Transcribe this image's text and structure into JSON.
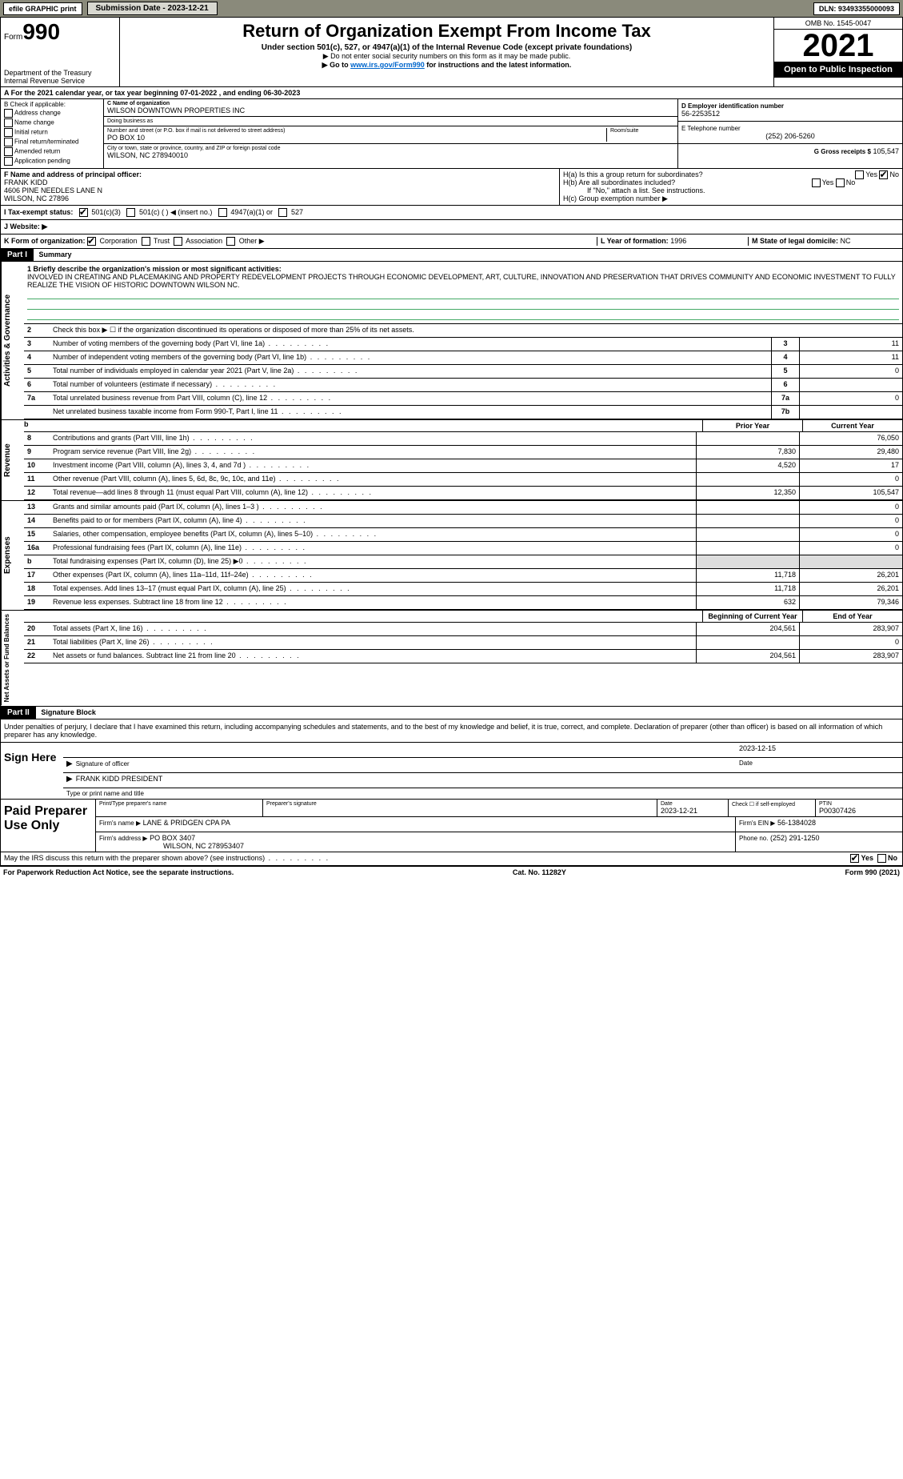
{
  "topbar": {
    "efile": "efile GRAPHIC print",
    "submission_label": "Submission Date - 2023-12-21",
    "dln": "DLN: 93493355000093"
  },
  "header": {
    "form_small": "Form",
    "form_big": "990",
    "dept": "Department of the Treasury",
    "irs": "Internal Revenue Service",
    "title": "Return of Organization Exempt From Income Tax",
    "sub1": "Under section 501(c), 527, or 4947(a)(1) of the Internal Revenue Code (except private foundations)",
    "sub2": "▶ Do not enter social security numbers on this form as it may be made public.",
    "sub3_pre": "▶ Go to ",
    "sub3_link": "www.irs.gov/Form990",
    "sub3_post": " for instructions and the latest information.",
    "omb": "OMB No. 1545-0047",
    "year": "2021",
    "open": "Open to Public Inspection"
  },
  "row_a": "A For the 2021 calendar year, or tax year beginning 07-01-2022    , and ending 06-30-2023",
  "check_b": {
    "title": "B Check if applicable:",
    "items": [
      "Address change",
      "Name change",
      "Initial return",
      "Final return/terminated",
      "Amended return",
      "Application pending"
    ]
  },
  "col_c": {
    "c_label": "C Name of organization",
    "name": "WILSON DOWNTOWN PROPERTIES INC",
    "dba_label": "Doing business as",
    "dba": "",
    "street_label": "Number and street (or P.O. box if mail is not delivered to street address)",
    "room_label": "Room/suite",
    "street": "PO BOX 10",
    "city_label": "City or town, state or province, country, and ZIP or foreign postal code",
    "city": "WILSON, NC  278940010"
  },
  "col_d": {
    "d_label": "D Employer identification number",
    "ein": "56-2253512",
    "e_label": "E Telephone number",
    "phone": "(252) 206-5260",
    "g_label": "G Gross receipts $",
    "gross": "105,547"
  },
  "section_f": {
    "f_label": "F  Name and address of principal officer:",
    "name": "FRANK KIDD",
    "addr1": "4606 PINE NEEDLES LANE N",
    "addr2": "WILSON, NC  27896"
  },
  "section_h": {
    "ha": "H(a)  Is this a group return for subordinates?",
    "ha_yes": "Yes",
    "ha_no": "No",
    "hb": "H(b)  Are all subordinates included?",
    "hb_yes": "Yes",
    "hb_no": "No",
    "hb_note": "If \"No,\" attach a list. See instructions.",
    "hc": "H(c)  Group exemption number ▶"
  },
  "tax_status": {
    "i_label": "I  Tax-exempt status:",
    "opt1": "501(c)(3)",
    "opt2": "501(c) (  ) ◀ (insert no.)",
    "opt3": "4947(a)(1) or",
    "opt4": "527"
  },
  "website": {
    "j_label": "J  Website: ▶",
    "val": ""
  },
  "row_k": {
    "k_label": "K Form of organization:",
    "corp": "Corporation",
    "trust": "Trust",
    "assoc": "Association",
    "other": "Other ▶",
    "l_label": "L Year of formation:",
    "l_val": "1996",
    "m_label": "M State of legal domicile:",
    "m_val": "NC"
  },
  "part1": {
    "hdr": "Part I",
    "title": "Summary",
    "mission_label": "1  Briefly describe the organization's mission or most significant activities:",
    "mission": "INVOLVED IN CREATING AND PLACEMAKING AND PROPERTY REDEVELOPMENT PROJECTS THROUGH ECONOMIC DEVELOPMENT, ART, CULTURE, INNOVATION AND PRESERVATION THAT DRIVES COMMUNITY AND ECONOMIC INVESTMENT TO FULLY REALIZE THE VISION OF HISTORIC DOWNTOWN WILSON NC.",
    "side_gov": "Activities & Governance",
    "side_rev": "Revenue",
    "side_exp": "Expenses",
    "side_net": "Net Assets or Fund Balances",
    "line2": "Check this box ▶ ☐ if the organization discontinued its operations or disposed of more than 25% of its net assets.",
    "prior_hdr": "Prior Year",
    "current_hdr": "Current Year",
    "begin_hdr": "Beginning of Current Year",
    "end_hdr": "End of Year",
    "lines_single": [
      {
        "n": "3",
        "t": "Number of voting members of the governing body (Part VI, line 1a)",
        "box": "3",
        "v": "11"
      },
      {
        "n": "4",
        "t": "Number of independent voting members of the governing body (Part VI, line 1b)",
        "box": "4",
        "v": "11"
      },
      {
        "n": "5",
        "t": "Total number of individuals employed in calendar year 2021 (Part V, line 2a)",
        "box": "5",
        "v": "0"
      },
      {
        "n": "6",
        "t": "Total number of volunteers (estimate if necessary)",
        "box": "6",
        "v": ""
      },
      {
        "n": "7a",
        "t": "Total unrelated business revenue from Part VIII, column (C), line 12",
        "box": "7a",
        "v": "0"
      },
      {
        "n": "",
        "t": "Net unrelated business taxable income from Form 990-T, Part I, line 11",
        "box": "7b",
        "v": ""
      }
    ],
    "lines_rev": [
      {
        "n": "8",
        "t": "Contributions and grants (Part VIII, line 1h)",
        "p": "",
        "c": "76,050"
      },
      {
        "n": "9",
        "t": "Program service revenue (Part VIII, line 2g)",
        "p": "7,830",
        "c": "29,480"
      },
      {
        "n": "10",
        "t": "Investment income (Part VIII, column (A), lines 3, 4, and 7d )",
        "p": "4,520",
        "c": "17"
      },
      {
        "n": "11",
        "t": "Other revenue (Part VIII, column (A), lines 5, 6d, 8c, 9c, 10c, and 11e)",
        "p": "",
        "c": "0"
      },
      {
        "n": "12",
        "t": "Total revenue—add lines 8 through 11 (must equal Part VIII, column (A), line 12)",
        "p": "12,350",
        "c": "105,547"
      }
    ],
    "lines_exp": [
      {
        "n": "13",
        "t": "Grants and similar amounts paid (Part IX, column (A), lines 1–3 )",
        "p": "",
        "c": "0"
      },
      {
        "n": "14",
        "t": "Benefits paid to or for members (Part IX, column (A), line 4)",
        "p": "",
        "c": "0"
      },
      {
        "n": "15",
        "t": "Salaries, other compensation, employee benefits (Part IX, column (A), lines 5–10)",
        "p": "",
        "c": "0"
      },
      {
        "n": "16a",
        "t": "Professional fundraising fees (Part IX, column (A), line 11e)",
        "p": "",
        "c": "0"
      },
      {
        "n": "b",
        "t": "Total fundraising expenses (Part IX, column (D), line 25) ▶0",
        "p": "",
        "c": "",
        "shade": true
      },
      {
        "n": "17",
        "t": "Other expenses (Part IX, column (A), lines 11a–11d, 11f–24e)",
        "p": "11,718",
        "c": "26,201"
      },
      {
        "n": "18",
        "t": "Total expenses. Add lines 13–17 (must equal Part IX, column (A), line 25)",
        "p": "11,718",
        "c": "26,201"
      },
      {
        "n": "19",
        "t": "Revenue less expenses. Subtract line 18 from line 12",
        "p": "632",
        "c": "79,346"
      }
    ],
    "lines_net": [
      {
        "n": "20",
        "t": "Total assets (Part X, line 16)",
        "p": "204,561",
        "c": "283,907"
      },
      {
        "n": "21",
        "t": "Total liabilities (Part X, line 26)",
        "p": "",
        "c": "0"
      },
      {
        "n": "22",
        "t": "Net assets or fund balances. Subtract line 21 from line 20",
        "p": "204,561",
        "c": "283,907"
      }
    ]
  },
  "part2": {
    "hdr": "Part II",
    "title": "Signature Block",
    "penalty": "Under penalties of perjury, I declare that I have examined this return, including accompanying schedules and statements, and to the best of my knowledge and belief, it is true, correct, and complete. Declaration of preparer (other than officer) is based on all information of which preparer has any knowledge.",
    "sign_here": "Sign Here",
    "sig_officer": "Signature of officer",
    "sig_date": "Date",
    "sig_date_val": "2023-12-15",
    "officer_name": "FRANK KIDD  PRESIDENT",
    "type_name": "Type or print name and title",
    "paid": "Paid Preparer Use Only",
    "prep_name_lbl": "Print/Type preparer's name",
    "prep_sig_lbl": "Preparer's signature",
    "date_lbl": "Date",
    "date_val": "2023-12-21",
    "check_self": "Check ☐ if self-employed",
    "ptin_lbl": "PTIN",
    "ptin": "P00307426",
    "firm_name_lbl": "Firm's name    ▶",
    "firm_name": "LANE & PRIDGEN CPA PA",
    "firm_ein_lbl": "Firm's EIN ▶",
    "firm_ein": "56-1384028",
    "firm_addr_lbl": "Firm's address ▶",
    "firm_addr1": "PO BOX 3407",
    "firm_addr2": "WILSON, NC  278953407",
    "phone_lbl": "Phone no.",
    "phone": "(252) 291-1250",
    "may_irs": "May the IRS discuss this return with the preparer shown above? (see instructions)",
    "yes": "Yes",
    "no": "No"
  },
  "footer": {
    "left": "For Paperwork Reduction Act Notice, see the separate instructions.",
    "mid": "Cat. No. 11282Y",
    "right": "Form 990 (2021)"
  },
  "colors": {
    "topbar_bg": "#8a8a7b",
    "link": "#0066cc",
    "mission_rule": "#44aa66"
  }
}
